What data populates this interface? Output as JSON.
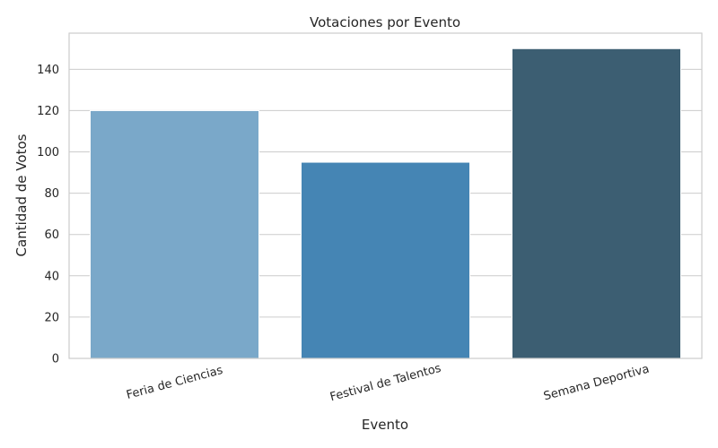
{
  "chart_data": {
    "type": "bar",
    "title": "Votaciones por Evento",
    "xlabel": "Evento",
    "ylabel": "Cantidad de Votos",
    "categories": [
      "Feria de Ciencias",
      "Festival de Talentos",
      "Semana Deportiva"
    ],
    "values": [
      120,
      95,
      150
    ],
    "colors": [
      "#7aa8c9",
      "#4585b4",
      "#3c5e72"
    ],
    "ylim": [
      0,
      157.5
    ],
    "yticks": [
      0,
      20,
      40,
      60,
      80,
      100,
      120,
      140
    ],
    "grid": true,
    "legend": "none"
  }
}
